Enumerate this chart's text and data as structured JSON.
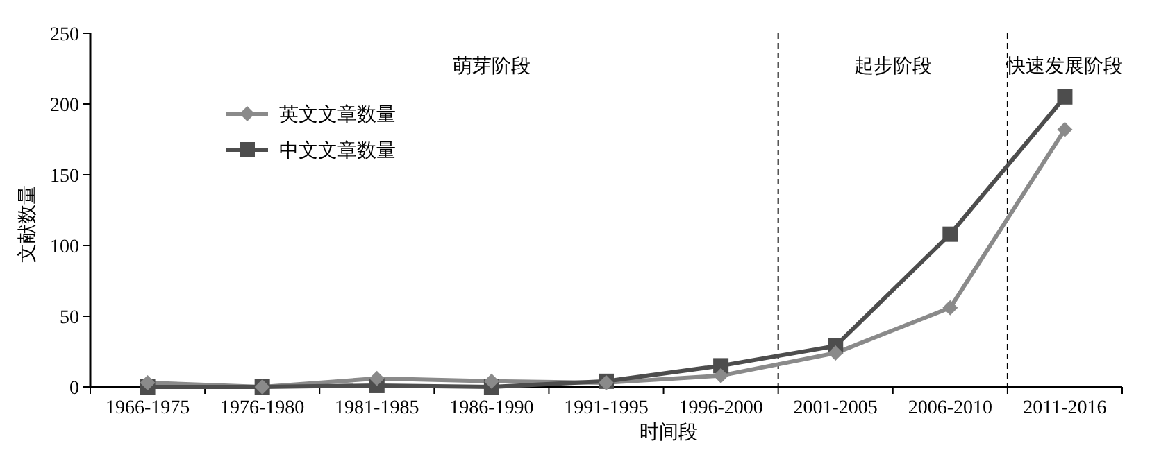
{
  "chart_data": {
    "type": "line",
    "xlabel": "时间段",
    "ylabel": "文献数量",
    "categories": [
      "1966-1975",
      "1976-1980",
      "1981-1985",
      "1986-1990",
      "1991-1995",
      "1996-2000",
      "2001-2005",
      "2006-2010",
      "2011-2016"
    ],
    "series": [
      {
        "name": "英文文章数量",
        "color": "#8a8a8a",
        "marker": "diamond",
        "values": [
          3,
          0,
          6,
          4,
          3,
          8,
          24,
          56,
          182
        ]
      },
      {
        "name": "中文文章数量",
        "color": "#4d4d4d",
        "marker": "square",
        "values": [
          0,
          0,
          1,
          0,
          4,
          15,
          29,
          108,
          205
        ]
      }
    ],
    "ylim": [
      0,
      250
    ],
    "yticks": [
      0,
      50,
      100,
      150,
      200,
      250
    ],
    "annotations": [
      "萌芽阶段",
      "起步阶段",
      "快速发展阶段"
    ],
    "legend": "top left",
    "grid": false
  }
}
